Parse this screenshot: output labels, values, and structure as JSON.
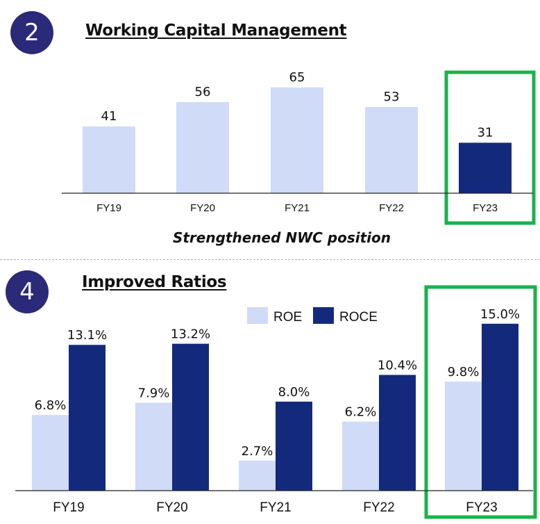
{
  "colors": {
    "badge": "#2b2a78",
    "light_bar": "#d0dbf7",
    "dark_bar": "#132a7c",
    "highlight": "#1ab24b"
  },
  "sections": [
    {
      "badge": "2",
      "title": "Working Capital Management"
    },
    {
      "badge": "4",
      "title": "Improved Ratios"
    }
  ],
  "chart_data": [
    {
      "type": "bar",
      "categories": [
        "FY19",
        "FY20",
        "FY21",
        "FY22",
        "FY23"
      ],
      "values": [
        41,
        56,
        65,
        53,
        31
      ],
      "data_labels": [
        "41",
        "56",
        "65",
        "53",
        "31"
      ],
      "highlighted_category": "FY23",
      "highlight_color": "dark",
      "caption": "Strengthened NWC position",
      "ylim": [
        0,
        76
      ],
      "grid": false,
      "legend": "none"
    },
    {
      "type": "bar",
      "categories": [
        "FY19",
        "FY20",
        "FY21",
        "FY22",
        "FY23"
      ],
      "series": [
        {
          "name": "ROE",
          "values": [
            6.8,
            7.9,
            2.7,
            6.2,
            9.8
          ],
          "labels": [
            "6.8%",
            "7.9%",
            "2.7%",
            "6.2%",
            "9.8%"
          ]
        },
        {
          "name": "ROCE",
          "values": [
            13.1,
            13.2,
            8.0,
            10.4,
            15.0
          ],
          "labels": [
            "13.1%",
            "13.2%",
            "8.0%",
            "10.4%",
            "15.0%"
          ]
        }
      ],
      "highlighted_category": "FY23",
      "ylim": [
        0,
        16.3
      ],
      "grid": false,
      "legend": "top-center"
    }
  ]
}
